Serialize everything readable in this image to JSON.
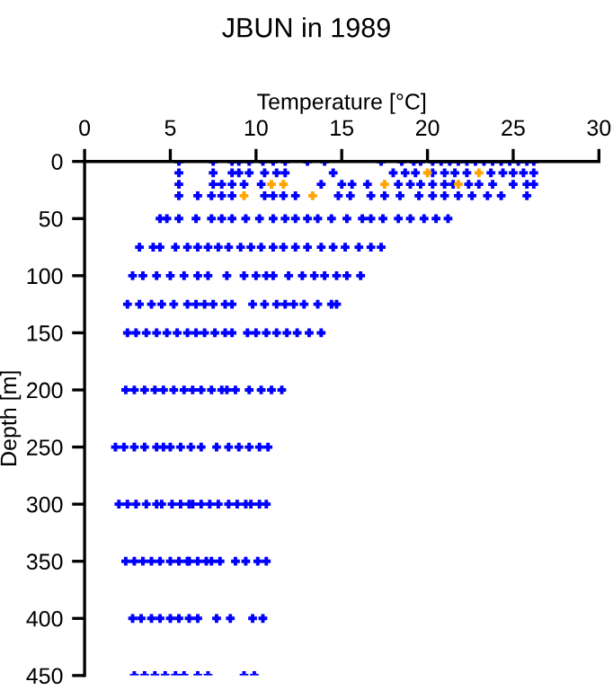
{
  "chart_data": {
    "type": "scatter",
    "title": "JBUN in 1989",
    "xlabel": "Temperature [°C]",
    "ylabel": "Depth [m]",
    "xlim": [
      0,
      30
    ],
    "xticks": [
      0,
      5,
      10,
      15,
      20,
      25,
      30
    ],
    "ylim": [
      450,
      0
    ],
    "yticks": [
      0,
      50,
      100,
      150,
      200,
      250,
      300,
      350,
      400,
      450
    ],
    "grid": false,
    "legend": false,
    "marker": "cross",
    "series": [
      {
        "color": "#0000ff",
        "x": [
          5.5,
          7.5,
          8.6,
          9.0,
          9.6,
          10.4,
          11.0,
          11.7,
          13.0,
          14.0,
          17.3,
          18.5,
          19.2,
          19.6,
          20.3,
          20.8,
          21.3,
          21.8,
          22.3,
          22.8,
          23.3,
          23.8,
          24.3,
          24.8,
          25.3,
          25.8,
          26.2
        ],
        "values": [
          0,
          0,
          0,
          0,
          0,
          0,
          0,
          0,
          0,
          0,
          0,
          0,
          0,
          0,
          0,
          0,
          0,
          0,
          0,
          0,
          0,
          0,
          0,
          0,
          0,
          0,
          0
        ]
      },
      {
        "color": "#0000ff",
        "x": [
          5.5,
          7.5,
          8.6,
          9.0,
          9.6,
          10.5,
          11.2,
          11.7,
          14.5,
          18.0,
          18.7,
          19.3,
          20.3,
          21.0,
          21.6,
          22.3,
          23.7,
          24.4,
          25.0,
          25.6,
          26.2
        ],
        "values": [
          10,
          10,
          10,
          10,
          10,
          10,
          10,
          10,
          10,
          10,
          10,
          10,
          10,
          10,
          10,
          10,
          10,
          10,
          10,
          10,
          10
        ]
      },
      {
        "color": "#0000ff",
        "x": [
          5.5,
          7.5,
          8.0,
          8.6,
          9.3,
          10.3,
          13.8,
          15.0,
          15.6,
          16.5,
          18.3,
          19.0,
          19.6,
          20.3,
          21.0,
          21.5,
          22.4,
          23.0,
          23.8,
          25.0,
          25.8,
          26.2
        ],
        "values": [
          20,
          20,
          20,
          20,
          20,
          20,
          20,
          20,
          20,
          20,
          20,
          20,
          20,
          20,
          20,
          20,
          20,
          20,
          20,
          20,
          20,
          20
        ]
      },
      {
        "color": "#0000ff",
        "x": [
          5.5,
          6.6,
          7.4,
          8.0,
          8.6,
          10.5,
          11.0,
          11.6,
          12.3,
          14.8,
          15.5,
          16.7,
          17.5,
          18.4,
          19.5,
          20.3,
          21.0,
          21.8,
          22.6,
          23.5,
          24.3,
          25.8
        ],
        "values": [
          30,
          30,
          30,
          30,
          30,
          30,
          30,
          30,
          30,
          30,
          30,
          30,
          30,
          30,
          30,
          30,
          30,
          30,
          30,
          30,
          30,
          30
        ]
      },
      {
        "color": "#0000ff",
        "x": [
          4.4,
          4.8,
          5.5,
          6.5,
          7.4,
          8.0,
          8.6,
          9.4,
          10.2,
          11.0,
          11.7,
          12.3,
          13.0,
          13.6,
          14.4,
          15.3,
          16.2,
          16.7,
          17.4,
          18.3,
          19.0,
          19.8,
          20.5,
          21.2
        ],
        "values": [
          50,
          50,
          50,
          50,
          50,
          50,
          50,
          50,
          50,
          50,
          50,
          50,
          50,
          50,
          50,
          50,
          50,
          50,
          50,
          50,
          50,
          50,
          50,
          50
        ]
      },
      {
        "color": "#0000ff",
        "x": [
          3.2,
          4.0,
          4.4,
          5.3,
          6.0,
          6.6,
          7.2,
          7.8,
          8.4,
          9.1,
          9.7,
          10.3,
          11.0,
          11.6,
          12.3,
          13.0,
          13.8,
          14.5,
          15.2,
          16.0,
          16.7,
          17.3
        ],
        "values": [
          75,
          75,
          75,
          75,
          75,
          75,
          75,
          75,
          75,
          75,
          75,
          75,
          75,
          75,
          75,
          75,
          75,
          75,
          75,
          75,
          75,
          75
        ]
      },
      {
        "color": "#0000ff",
        "x": [
          2.8,
          3.4,
          4.2,
          5.0,
          5.8,
          6.6,
          7.2,
          8.3,
          9.3,
          10.0,
          10.6,
          11.0,
          11.9,
          12.7,
          13.4,
          14.0,
          14.7,
          15.3,
          16.1
        ],
        "values": [
          100,
          100,
          100,
          100,
          100,
          100,
          100,
          100,
          100,
          100,
          100,
          100,
          100,
          100,
          100,
          100,
          100,
          100,
          100
        ]
      },
      {
        "color": "#0000ff",
        "x": [
          2.5,
          3.2,
          3.9,
          4.5,
          5.2,
          6.0,
          6.5,
          7.0,
          7.5,
          8.2,
          8.6,
          9.8,
          10.5,
          11.2,
          11.7,
          12.2,
          12.8,
          13.6,
          14.4,
          14.7
        ],
        "values": [
          125,
          125,
          125,
          125,
          125,
          125,
          125,
          125,
          125,
          125,
          125,
          125,
          125,
          125,
          125,
          125,
          125,
          125,
          125,
          125
        ]
      },
      {
        "color": "#0000ff",
        "x": [
          2.5,
          3.0,
          3.6,
          4.2,
          4.8,
          5.4,
          6.0,
          6.5,
          7.0,
          7.6,
          8.2,
          8.6,
          9.5,
          10.0,
          10.6,
          11.2,
          11.8,
          12.4,
          13.1,
          13.8
        ],
        "values": [
          150,
          150,
          150,
          150,
          150,
          150,
          150,
          150,
          150,
          150,
          150,
          150,
          150,
          150,
          150,
          150,
          150,
          150,
          150,
          150
        ]
      },
      {
        "color": "#0000ff",
        "x": [
          2.4,
          2.9,
          3.5,
          4.1,
          4.6,
          5.2,
          5.8,
          6.3,
          6.8,
          7.4,
          8.0,
          8.3,
          8.8,
          9.6,
          10.3,
          10.9,
          11.5
        ],
        "values": [
          200,
          200,
          200,
          200,
          200,
          200,
          200,
          200,
          200,
          200,
          200,
          200,
          200,
          200,
          200,
          200,
          200
        ]
      },
      {
        "color": "#0000ff",
        "x": [
          1.8,
          2.3,
          2.9,
          3.5,
          4.2,
          4.6,
          5.0,
          5.6,
          6.2,
          6.8,
          7.7,
          8.4,
          9.0,
          9.6,
          10.2,
          10.7
        ],
        "values": [
          250,
          250,
          250,
          250,
          250,
          250,
          250,
          250,
          250,
          250,
          250,
          250,
          250,
          250,
          250,
          250
        ]
      },
      {
        "color": "#0000ff",
        "x": [
          2.0,
          2.5,
          3.0,
          3.6,
          4.2,
          4.5,
          5.1,
          5.6,
          6.1,
          6.3,
          6.8,
          7.3,
          7.8,
          8.4,
          8.9,
          9.4,
          9.7,
          10.2,
          10.6
        ],
        "values": [
          300,
          300,
          300,
          300,
          300,
          300,
          300,
          300,
          300,
          300,
          300,
          300,
          300,
          300,
          300,
          300,
          300,
          300,
          300
        ]
      },
      {
        "color": "#0000ff",
        "x": [
          2.4,
          2.9,
          3.4,
          3.9,
          4.4,
          5.0,
          5.5,
          6.0,
          6.1,
          6.6,
          7.1,
          7.4,
          7.9,
          8.8,
          9.4,
          10.1,
          10.6
        ],
        "values": [
          350,
          350,
          350,
          350,
          350,
          350,
          350,
          350,
          350,
          350,
          350,
          350,
          350,
          350,
          350,
          350,
          350
        ]
      },
      {
        "color": "#0000ff",
        "x": [
          2.8,
          3.3,
          3.9,
          4.4,
          5.0,
          5.5,
          6.1,
          6.6,
          7.7,
          8.5,
          9.8,
          10.4
        ],
        "values": [
          400,
          400,
          400,
          400,
          400,
          400,
          400,
          400,
          400,
          400,
          400,
          400
        ]
      },
      {
        "color": "#0000ff",
        "x": [
          2.9,
          3.5,
          4.1,
          4.7,
          5.3,
          5.8,
          6.6,
          7.2,
          9.3,
          9.9
        ],
        "values": [
          450,
          450,
          450,
          450,
          450,
          450,
          450,
          450,
          450,
          450
        ]
      },
      {
        "color": "#ffa500",
        "x": [
          20.0,
          23.0,
          10.9,
          11.6,
          17.5,
          21.8,
          9.3,
          13.3
        ],
        "values": [
          10,
          10,
          20,
          20,
          20,
          20,
          30,
          30
        ]
      }
    ]
  }
}
